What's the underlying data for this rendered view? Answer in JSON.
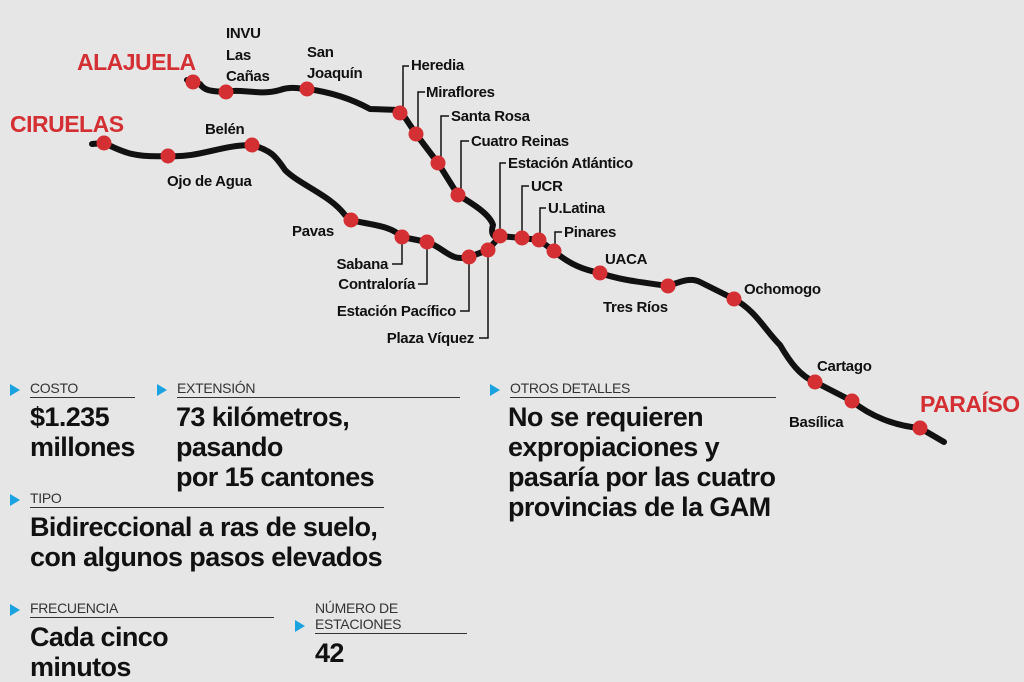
{
  "colors": {
    "station": "#d42f33",
    "line": "#111111",
    "city": "#d42f33",
    "marker": "#1aa3e0",
    "background": "#e6e6e6"
  },
  "map": {
    "cities": {
      "alajuela": "ALAJUELA",
      "ciruelas": "CIRUELAS",
      "paraiso": "PARAÍSO"
    },
    "stations": {
      "invu_1": "INVU",
      "invu_2": "Las",
      "invu_3": "Cañas",
      "sanjoaquin_1": "San",
      "sanjoaquin_2": "Joaquín",
      "heredia": "Heredia",
      "miraflores": "Miraflores",
      "santarosa": "Santa Rosa",
      "cuatroreinas": "Cuatro Reinas",
      "atlantico": "Estación Atlántico",
      "ucr": "UCR",
      "ulatina": "U.Latina",
      "pinares": "Pinares",
      "uaca": "UACA",
      "tresrios": "Tres Ríos",
      "ochomogo": "Ochomogo",
      "cartago": "Cartago",
      "basilica": "Basílica",
      "belen": "Belén",
      "ojodeagua": "Ojo de Agua",
      "pavas": "Pavas",
      "sabana": "Sabana",
      "contraloria": "Contraloría",
      "pacifico": "Estación Pacífico",
      "plazaviquez": "Plaza Víquez"
    }
  },
  "info": {
    "costo": {
      "label": "COSTO",
      "value": "$1.235\nmillones"
    },
    "extension": {
      "label": "EXTENSIÓN",
      "value": "73 kilómetros, pasando\npor 15 cantones"
    },
    "otros": {
      "label": "OTROS DETALLES",
      "value": "No se requieren\nexpropiaciones y\npasaría por las cuatro\nprovincias de la GAM"
    },
    "tipo": {
      "label": "TIPO",
      "value": "Bidireccional a ras de suelo,\ncon algunos pasos elevados"
    },
    "frecuencia": {
      "label": "FRECUENCIA",
      "value": "Cada cinco minutos"
    },
    "estaciones": {
      "label": "NÚMERO DE ESTACIONES",
      "value": "42"
    }
  }
}
